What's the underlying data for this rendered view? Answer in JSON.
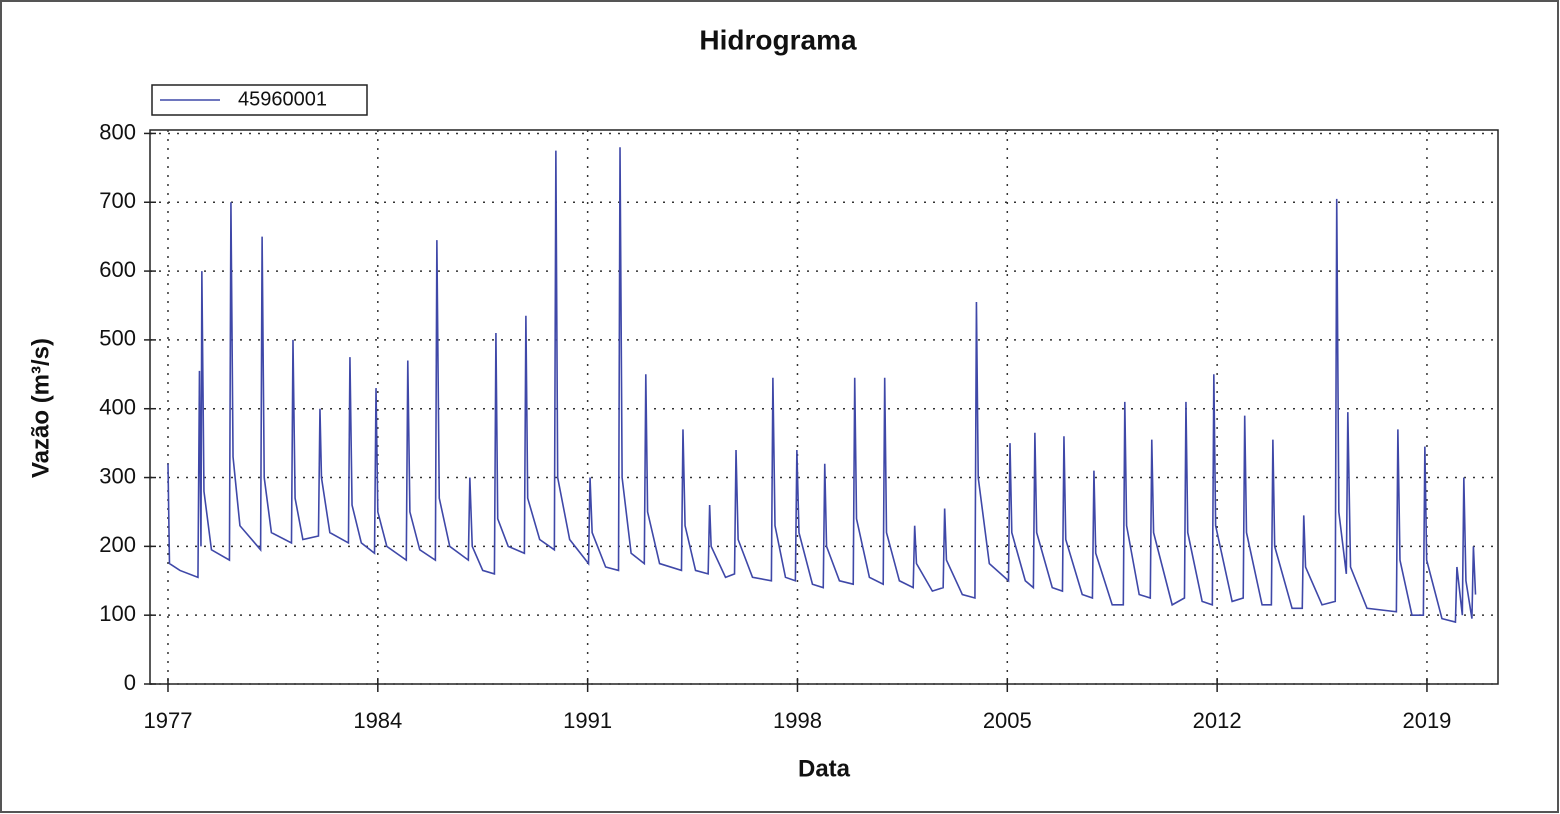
{
  "chart_data": {
    "type": "line",
    "title": "Hidrograma",
    "x_label": "Data",
    "y_label": "Vazão (m³/s)",
    "xlim": [
      1976.4,
      2021.37
    ],
    "ylim": [
      0,
      805
    ],
    "xticks": [
      1977,
      1984,
      1991,
      1998,
      2005,
      2012,
      2019
    ],
    "yticks": [
      0,
      100,
      200,
      300,
      400,
      500,
      600,
      700,
      800
    ],
    "grid": true,
    "legend": "upper left",
    "x": [
      1977.0,
      1977.05,
      1977.4,
      1978.0,
      1978.05,
      1978.1,
      1978.13,
      1978.2,
      1978.45,
      1979.05,
      1979.1,
      1979.17,
      1979.4,
      1980.09,
      1980.14,
      1980.21,
      1980.45,
      1981.12,
      1981.17,
      1981.24,
      1981.5,
      1982.02,
      1982.07,
      1982.12,
      1982.4,
      1983.02,
      1983.07,
      1983.14,
      1983.45,
      1983.89,
      1983.94,
      1984.0,
      1984.3,
      1984.95,
      1985.0,
      1985.07,
      1985.4,
      1985.92,
      1985.97,
      1986.05,
      1986.4,
      1987.02,
      1987.07,
      1987.15,
      1987.5,
      1987.89,
      1987.94,
      1988.0,
      1988.35,
      1988.89,
      1988.94,
      1989.0,
      1989.4,
      1989.89,
      1989.94,
      1990.0,
      1990.4,
      1991.03,
      1991.08,
      1991.15,
      1991.6,
      1992.03,
      1992.08,
      1992.15,
      1992.45,
      1992.89,
      1992.94,
      1993.0,
      1993.4,
      1994.13,
      1994.18,
      1994.25,
      1994.6,
      1995.02,
      1995.07,
      1995.12,
      1995.6,
      1995.9,
      1995.95,
      1996.02,
      1996.5,
      1997.13,
      1997.18,
      1997.25,
      1997.6,
      1997.93,
      1997.98,
      1998.05,
      1998.5,
      1998.86,
      1998.91,
      1998.97,
      1999.4,
      1999.86,
      1999.91,
      1999.97,
      2000.4,
      2000.86,
      2000.91,
      2000.97,
      2001.4,
      2001.86,
      2001.91,
      2001.97,
      2002.5,
      2002.86,
      2002.91,
      2002.97,
      2003.5,
      2003.92,
      2003.97,
      2004.03,
      2004.4,
      2005.04,
      2005.09,
      2005.15,
      2005.6,
      2005.87,
      2005.92,
      2005.98,
      2006.5,
      2006.84,
      2006.89,
      2006.95,
      2007.5,
      2007.84,
      2007.89,
      2007.95,
      2008.5,
      2008.87,
      2008.92,
      2008.98,
      2009.4,
      2009.77,
      2009.82,
      2009.88,
      2010.5,
      2010.91,
      2010.96,
      2011.02,
      2011.5,
      2011.84,
      2011.89,
      2011.95,
      2012.5,
      2012.87,
      2012.92,
      2012.98,
      2013.5,
      2013.81,
      2013.86,
      2013.92,
      2014.5,
      2014.84,
      2014.89,
      2014.95,
      2015.5,
      2015.94,
      2015.99,
      2016.06,
      2016.31,
      2016.36,
      2016.45,
      2017.0,
      2017.98,
      2018.03,
      2018.1,
      2018.5,
      2018.88,
      2018.93,
      2018.99,
      2019.5,
      2019.95,
      2020.0,
      2020.18,
      2020.23,
      2020.3,
      2020.5,
      2020.55,
      2020.62
    ],
    "series": [
      {
        "name": "45960001",
        "color": "#3f48a8",
        "values": [
          320,
          175,
          165,
          155,
          455,
          200,
          600,
          280,
          195,
          180,
          700,
          330,
          230,
          195,
          650,
          300,
          220,
          205,
          500,
          270,
          210,
          215,
          400,
          300,
          220,
          205,
          475,
          260,
          205,
          190,
          430,
          250,
          200,
          180,
          470,
          250,
          195,
          180,
          645,
          270,
          200,
          180,
          300,
          200,
          165,
          160,
          510,
          240,
          200,
          190,
          535,
          270,
          210,
          195,
          775,
          300,
          210,
          175,
          300,
          220,
          170,
          165,
          780,
          300,
          190,
          175,
          450,
          250,
          175,
          165,
          370,
          230,
          165,
          160,
          260,
          200,
          155,
          160,
          340,
          210,
          155,
          150,
          445,
          230,
          155,
          150,
          340,
          220,
          145,
          140,
          320,
          200,
          150,
          145,
          445,
          240,
          155,
          145,
          445,
          220,
          150,
          140,
          230,
          175,
          135,
          140,
          255,
          180,
          130,
          125,
          555,
          300,
          175,
          150,
          350,
          220,
          150,
          140,
          365,
          220,
          140,
          135,
          360,
          210,
          130,
          125,
          310,
          190,
          115,
          115,
          410,
          230,
          130,
          125,
          355,
          220,
          115,
          125,
          410,
          220,
          120,
          115,
          450,
          230,
          120,
          125,
          390,
          220,
          115,
          115,
          355,
          200,
          110,
          110,
          245,
          170,
          115,
          120,
          705,
          250,
          160,
          395,
          170,
          110,
          105,
          370,
          180,
          100,
          100,
          345,
          180,
          95,
          90,
          170,
          100,
          300,
          150,
          95,
          200,
          130
        ]
      }
    ]
  }
}
